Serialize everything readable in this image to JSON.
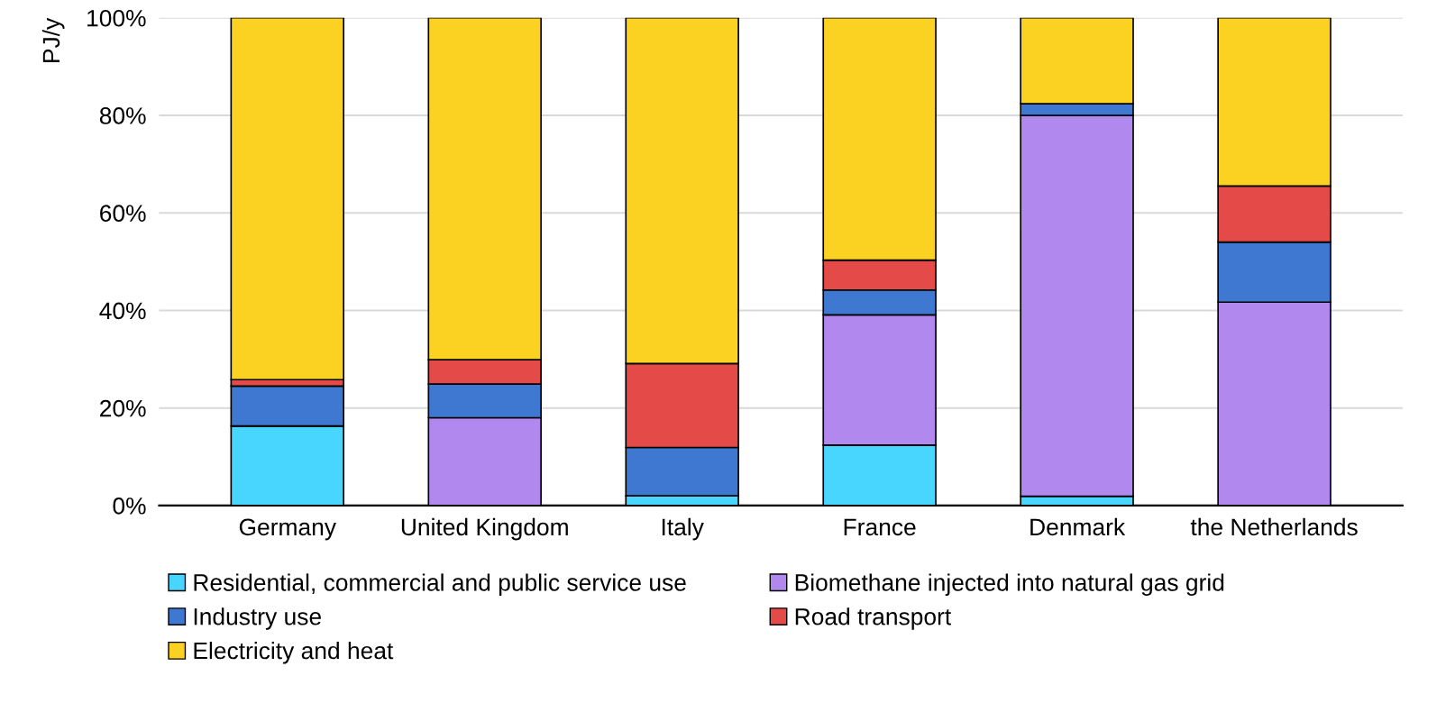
{
  "chart_data": {
    "type": "bar",
    "stacked": true,
    "ylabel": "PJ/y",
    "categories": [
      "Germany",
      "United Kingdom",
      "Italy",
      "France",
      "Denmark",
      "the Netherlands"
    ],
    "series": [
      {
        "name": "Residential, commercial and public service use",
        "color": "#48d5fe",
        "values": [
          16.3,
          null,
          2.0,
          12.4,
          1.9,
          0
        ]
      },
      {
        "name": "Biomethane injected into natural gas grid",
        "color": "#b088ee",
        "values": [
          0,
          18.0,
          0,
          26.7,
          78.1,
          41.7
        ]
      },
      {
        "name": "Industry use",
        "color": "#3f78d1",
        "values": [
          8.2,
          6.9,
          9.9,
          5.1,
          2.4,
          12.3
        ]
      },
      {
        "name": "Road transport",
        "color": "#e34a48",
        "values": [
          1.3,
          5.0,
          17.2,
          6.1,
          0,
          11.5
        ]
      },
      {
        "name": "Electricity and heat",
        "color": "#fcd222",
        "values": [
          74.2,
          70.1,
          70.9,
          49.7,
          17.6,
          34.5
        ]
      }
    ],
    "ylim": [
      0,
      100
    ],
    "yticks": [
      {
        "value": 0,
        "label": "0%"
      },
      {
        "value": 20,
        "label": "20%"
      },
      {
        "value": 40,
        "label": "40%"
      },
      {
        "value": 60,
        "label": "60%"
      },
      {
        "value": 80,
        "label": "80%"
      },
      {
        "value": 100,
        "label": "100%"
      }
    ],
    "grid": "y",
    "legend": "bottom"
  }
}
